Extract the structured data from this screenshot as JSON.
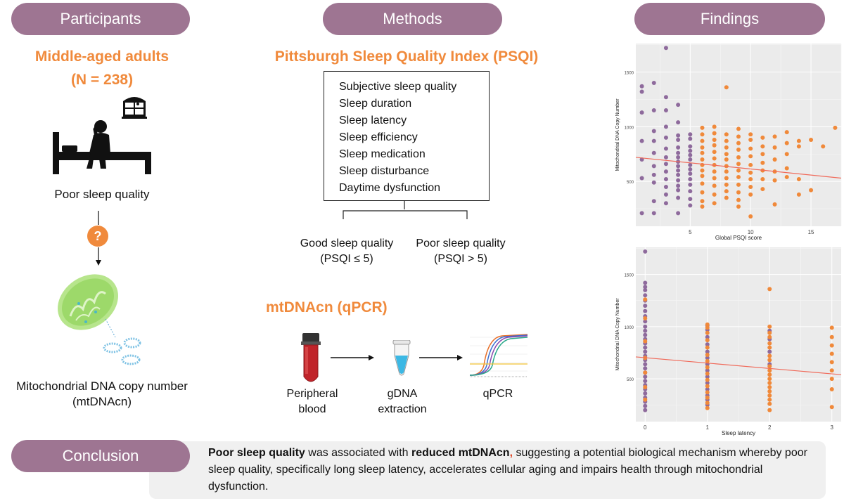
{
  "headers": {
    "participants": "Participants",
    "methods": "Methods",
    "findings": "Findings",
    "conclusion": "Conclusion"
  },
  "participants": {
    "title_line1": "Middle-aged adults",
    "title_line2": "(N = 238)",
    "poor_sleep_label": "Poor sleep quality",
    "question_mark": "?",
    "mtdna_line1": "Mitochondrial DNA copy number",
    "mtdna_line2": "(mtDNAcn)"
  },
  "methods": {
    "psqi_title": "Pittsburgh Sleep Quality Index (PSQI)",
    "psqi_components": [
      "Subjective sleep quality",
      "Sleep duration",
      "Sleep latency",
      "Sleep efficiency",
      "Sleep medication",
      "Sleep disturbance",
      "Daytime dysfunction"
    ],
    "good_label_line1": "Good sleep quality",
    "good_label_line2": "(PSQI ≤ 5)",
    "poor_label_line1": "Poor sleep quality",
    "poor_label_line2": "(PSQI > 5)",
    "mtdnacn_title": "mtDNAcn (qPCR)",
    "step1_line1": "Peripheral",
    "step1_line2": "blood",
    "step2_line1": "gDNA",
    "step2_line2": "extraction",
    "step3": "qPCR"
  },
  "conclusion": {
    "bold1": "Poor sleep quality",
    "text1": " was associated with ",
    "bold2": "reduced mtDNAcn",
    "comma": ",",
    "text2": " suggesting a potential biological mechanism whereby poor sleep quality, specifically long sleep latency, accelerates cellular aging and impairs health through mitochondrial dysfunction."
  },
  "colors": {
    "header_pill": "#9e7592",
    "accent_orange": "#f08a3c",
    "good_sleep_purple": "#8e6a9c",
    "poor_sleep_orange": "#f0893a",
    "regression_line": "#f06a5a",
    "mitochondrion_green": "#9dd96a"
  },
  "icons": {
    "bed_person": "person-sitting-on-bed-icon",
    "window": "window-icon",
    "question": "question-mark-icon",
    "mitochondrion": "mitochondrion-icon",
    "blood_tube": "blood-tube-icon",
    "dna_tube": "eppendorf-tube-icon",
    "qpcr_curve": "amplification-curve-icon"
  },
  "chart_data": [
    {
      "type": "scatter",
      "xlabel": "Global PSQI score",
      "ylabel": "Mitochondrial DNA Copy Number",
      "xlim": [
        0.5,
        17.5
      ],
      "ylim": [
        90,
        1760
      ],
      "xticks": [
        5,
        10,
        15
      ],
      "yticks": [
        500,
        1000,
        1500
      ],
      "grid": true,
      "legend": "none",
      "regression": {
        "x0": 0.5,
        "y0": 720,
        "x1": 17.5,
        "y1": 530
      },
      "series": [
        {
          "color": "purple",
          "points": [
            [
              1,
              1370
            ],
            [
              1,
              1320
            ],
            [
              1,
              1130
            ],
            [
              1,
              870
            ],
            [
              1,
              700
            ],
            [
              1,
              530
            ],
            [
              1,
              210
            ],
            [
              2,
              1400
            ],
            [
              2,
              1150
            ],
            [
              2,
              960
            ],
            [
              2,
              870
            ],
            [
              2,
              760
            ],
            [
              2,
              640
            ],
            [
              2,
              560
            ],
            [
              2,
              490
            ],
            [
              2,
              320
            ],
            [
              2,
              210
            ],
            [
              3,
              1720
            ],
            [
              3,
              1270
            ],
            [
              3,
              1150
            ],
            [
              3,
              1000
            ],
            [
              3,
              900
            ],
            [
              3,
              800
            ],
            [
              3,
              720
            ],
            [
              3,
              660
            ],
            [
              3,
              590
            ],
            [
              3,
              520
            ],
            [
              3,
              450
            ],
            [
              3,
              380
            ],
            [
              3,
              300
            ],
            [
              4,
              1200
            ],
            [
              4,
              1040
            ],
            [
              4,
              920
            ],
            [
              4,
              880
            ],
            [
              4,
              810
            ],
            [
              4,
              760
            ],
            [
              4,
              720
            ],
            [
              4,
              680
            ],
            [
              4,
              640
            ],
            [
              4,
              600
            ],
            [
              4,
              560
            ],
            [
              4,
              510
            ],
            [
              4,
              460
            ],
            [
              4,
              420
            ],
            [
              4,
              350
            ],
            [
              4,
              210
            ],
            [
              5,
              930
            ],
            [
              5,
              890
            ],
            [
              5,
              820
            ],
            [
              5,
              780
            ],
            [
              5,
              740
            ],
            [
              5,
              700
            ],
            [
              5,
              650
            ],
            [
              5,
              610
            ],
            [
              5,
              570
            ],
            [
              5,
              520
            ],
            [
              5,
              470
            ],
            [
              5,
              410
            ],
            [
              5,
              340
            ],
            [
              5,
              280
            ]
          ]
        },
        {
          "color": "orange",
          "points": [
            [
              6,
              990
            ],
            [
              6,
              930
            ],
            [
              6,
              870
            ],
            [
              6,
              810
            ],
            [
              6,
              760
            ],
            [
              6,
              700
            ],
            [
              6,
              650
            ],
            [
              6,
              600
            ],
            [
              6,
              550
            ],
            [
              6,
              480
            ],
            [
              6,
              400
            ],
            [
              6,
              320
            ],
            [
              6,
              270
            ],
            [
              7,
              1000
            ],
            [
              7,
              940
            ],
            [
              7,
              880
            ],
            [
              7,
              830
            ],
            [
              7,
              770
            ],
            [
              7,
              710
            ],
            [
              7,
              650
            ],
            [
              7,
              590
            ],
            [
              7,
              530
            ],
            [
              7,
              460
            ],
            [
              7,
              380
            ],
            [
              7,
              300
            ],
            [
              8,
              1360
            ],
            [
              8,
              930
            ],
            [
              8,
              870
            ],
            [
              8,
              810
            ],
            [
              8,
              750
            ],
            [
              8,
              700
            ],
            [
              8,
              640
            ],
            [
              8,
              590
            ],
            [
              8,
              530
            ],
            [
              8,
              470
            ],
            [
              8,
              410
            ],
            [
              8,
              350
            ],
            [
              9,
              980
            ],
            [
              9,
              910
            ],
            [
              9,
              850
            ],
            [
              9,
              790
            ],
            [
              9,
              720
            ],
            [
              9,
              660
            ],
            [
              9,
              600
            ],
            [
              9,
              540
            ],
            [
              9,
              470
            ],
            [
              9,
              400
            ],
            [
              9,
              330
            ],
            [
              9,
              270
            ],
            [
              10,
              930
            ],
            [
              10,
              880
            ],
            [
              10,
              800
            ],
            [
              10,
              730
            ],
            [
              10,
              650
            ],
            [
              10,
              580
            ],
            [
              10,
              520
            ],
            [
              10,
              450
            ],
            [
              10,
              380
            ],
            [
              10,
              180
            ],
            [
              11,
              900
            ],
            [
              11,
              820
            ],
            [
              11,
              750
            ],
            [
              11,
              670
            ],
            [
              11,
              600
            ],
            [
              11,
              520
            ],
            [
              11,
              430
            ],
            [
              12,
              910
            ],
            [
              12,
              810
            ],
            [
              12,
              700
            ],
            [
              12,
              590
            ],
            [
              12,
              510
            ],
            [
              12,
              290
            ],
            [
              13,
              950
            ],
            [
              13,
              850
            ],
            [
              13,
              750
            ],
            [
              13,
              620
            ],
            [
              13,
              540
            ],
            [
              14,
              870
            ],
            [
              14,
              820
            ],
            [
              14,
              520
            ],
            [
              14,
              380
            ],
            [
              15,
              880
            ],
            [
              15,
              420
            ],
            [
              16,
              820
            ],
            [
              17,
              990
            ]
          ]
        }
      ]
    },
    {
      "type": "scatter",
      "xlabel": "Sleep latency",
      "ylabel": "Mitochondrial DNA Copy Number",
      "xlim": [
        -0.15,
        3.15
      ],
      "ylim": [
        90,
        1760
      ],
      "xticks": [
        0,
        1,
        2,
        3
      ],
      "yticks": [
        500,
        1000,
        1500
      ],
      "grid": true,
      "legend": "none",
      "regression": {
        "x0": -0.15,
        "y0": 710,
        "x1": 3.15,
        "y1": 540
      },
      "series": [
        {
          "color": "purple",
          "points": [
            [
              0,
              1720
            ],
            [
              0,
              1420
            ],
            [
              0,
              1380
            ],
            [
              0,
              1350
            ],
            [
              0,
              1300
            ],
            [
              0,
              1250
            ],
            [
              0,
              1200
            ],
            [
              0,
              1150
            ],
            [
              0,
              1100
            ],
            [
              0,
              1050
            ],
            [
              0,
              1000
            ],
            [
              0,
              960
            ],
            [
              0,
              920
            ],
            [
              0,
              880
            ],
            [
              0,
              840
            ],
            [
              0,
              800
            ],
            [
              0,
              760
            ],
            [
              0,
              720
            ],
            [
              0,
              680
            ],
            [
              0,
              640
            ],
            [
              0,
              600
            ],
            [
              0,
              560
            ],
            [
              0,
              520
            ],
            [
              0,
              480
            ],
            [
              0,
              440
            ],
            [
              0,
              400
            ],
            [
              0,
              360
            ],
            [
              0,
              320
            ],
            [
              0,
              280
            ],
            [
              0,
              240
            ],
            [
              0,
              200
            ],
            [
              1,
              1010
            ],
            [
              1,
              970
            ],
            [
              1,
              900
            ],
            [
              1,
              830
            ],
            [
              1,
              760
            ],
            [
              1,
              700
            ],
            [
              1,
              640
            ],
            [
              1,
              580
            ],
            [
              1,
              520
            ],
            [
              1,
              460
            ],
            [
              1,
              400
            ],
            [
              1,
              340
            ],
            [
              1,
              300
            ],
            [
              1,
              250
            ],
            [
              2,
              960
            ],
            [
              2,
              880
            ],
            [
              2,
              760
            ],
            [
              2,
              640
            ]
          ]
        },
        {
          "color": "orange",
          "points": [
            [
              0,
              1260
            ],
            [
              0,
              1080
            ],
            [
              0,
              860
            ],
            [
              0,
              700
            ],
            [
              0,
              560
            ],
            [
              0,
              420
            ],
            [
              0,
              300
            ],
            [
              1,
              1020
            ],
            [
              1,
              990
            ],
            [
              1,
              940
            ],
            [
              1,
              870
            ],
            [
              1,
              800
            ],
            [
              1,
              730
            ],
            [
              1,
              670
            ],
            [
              1,
              610
            ],
            [
              1,
              550
            ],
            [
              1,
              490
            ],
            [
              1,
              430
            ],
            [
              1,
              370
            ],
            [
              1,
              320
            ],
            [
              1,
              270
            ],
            [
              1,
              220
            ],
            [
              2,
              1360
            ],
            [
              2,
              1000
            ],
            [
              2,
              940
            ],
            [
              2,
              900
            ],
            [
              2,
              840
            ],
            [
              2,
              800
            ],
            [
              2,
              720
            ],
            [
              2,
              680
            ],
            [
              2,
              620
            ],
            [
              2,
              580
            ],
            [
              2,
              540
            ],
            [
              2,
              500
            ],
            [
              2,
              460
            ],
            [
              2,
              420
            ],
            [
              2,
              380
            ],
            [
              2,
              340
            ],
            [
              2,
              300
            ],
            [
              2,
              260
            ],
            [
              2,
              200
            ],
            [
              3,
              990
            ],
            [
              3,
              900
            ],
            [
              3,
              820
            ],
            [
              3,
              740
            ],
            [
              3,
              660
            ],
            [
              3,
              580
            ],
            [
              3,
              500
            ],
            [
              3,
              400
            ],
            [
              3,
              230
            ]
          ]
        }
      ]
    }
  ]
}
